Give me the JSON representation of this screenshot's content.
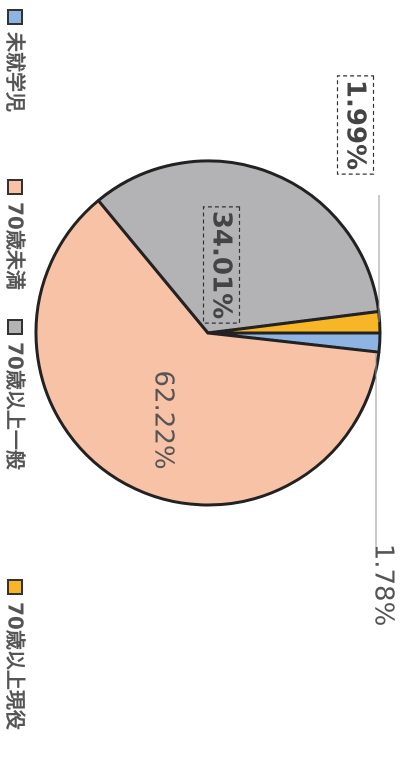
{
  "chart_data": {
    "type": "pie",
    "categories": [
      "未就学児",
      "70歳未満",
      "70歳以上一般",
      "70歳以上現役"
    ],
    "values": [
      1.78,
      62.22,
      34.01,
      1.99
    ],
    "value_labels": [
      "1.78%",
      "62.22%",
      "34.01%",
      "1.99%"
    ],
    "colors": [
      "#8db4e2",
      "#f8c2a6",
      "#b3b3b6",
      "#f8b627"
    ],
    "legend": "bottom"
  }
}
